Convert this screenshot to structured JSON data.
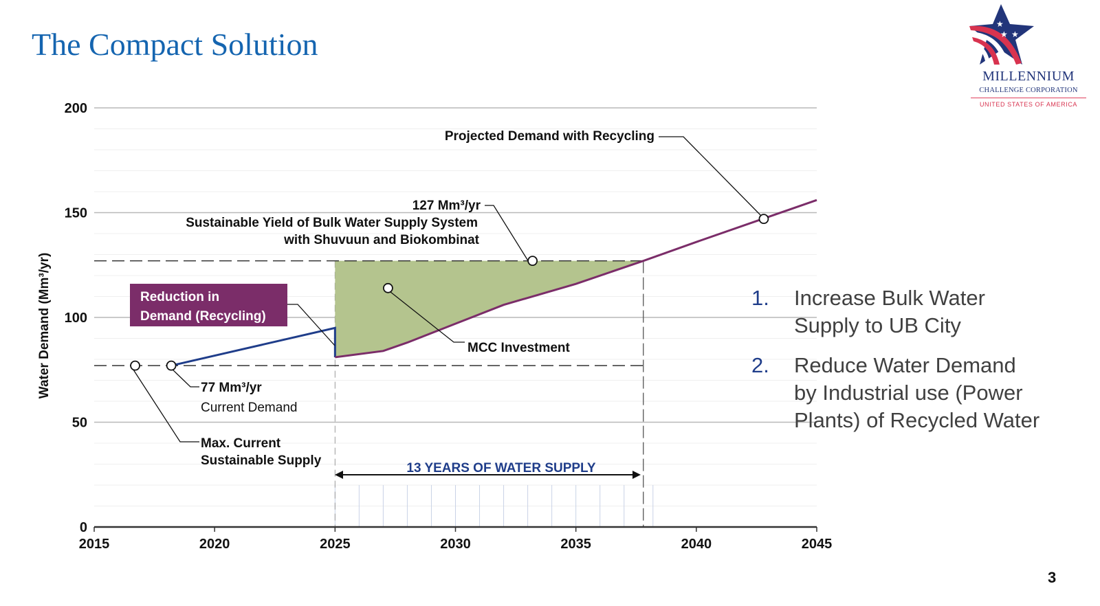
{
  "slide": {
    "title": "The Compact Solution",
    "page_number": "3"
  },
  "logo": {
    "icon": "star-flag-logo",
    "line1": "MILLENNIUM",
    "line2": "CHALLENGE CORPORATION",
    "line3": "UNITED STATES OF AMERICA",
    "colors": {
      "navy": "#22357a",
      "red": "#d8334f"
    }
  },
  "bullets": [
    {
      "num": "1.",
      "text": "Increase Bulk Water Supply to UB City"
    },
    {
      "num": "2.",
      "text": "Reduce Water Demand by Industrial use (Power Plants) of Recycled Water"
    }
  ],
  "chart_data": {
    "type": "line",
    "title": "",
    "xlabel": "",
    "ylabel": "Water Demand (Mm³/yr)",
    "xlim": [
      2015,
      2045
    ],
    "ylim": [
      0,
      200
    ],
    "x_ticks": [
      "2015",
      "2020",
      "2025",
      "2030",
      "2035",
      "2040",
      "2045"
    ],
    "y_ticks": [
      "0",
      "50",
      "100",
      "150",
      "200"
    ],
    "grid": true,
    "series": [
      {
        "name": "Current demand trajectory",
        "color": "#1f3d8a",
        "points": [
          [
            2018.2,
            77
          ],
          [
            2025,
            95
          ],
          [
            2025,
            81
          ]
        ]
      },
      {
        "name": "Projected Demand with Recycling",
        "color": "#7b2d69",
        "points": [
          [
            2025,
            81
          ],
          [
            2027,
            84
          ],
          [
            2028,
            88
          ],
          [
            2030,
            97
          ],
          [
            2032,
            106
          ],
          [
            2035,
            116
          ],
          [
            2037.8,
            127
          ],
          [
            2040,
            136
          ],
          [
            2045,
            156
          ]
        ]
      }
    ],
    "reference_lines": [
      {
        "name": "Max. Current Sustainable Supply",
        "y": 77,
        "style": "dashed",
        "x_end": 2037.8
      },
      {
        "name": "Sustainable Yield of Bulk Water Supply System",
        "y": 127,
        "style": "dashed",
        "x_end": 2037.8
      }
    ],
    "shaded_area": {
      "name": "MCC Investment",
      "color": "#b4c48e",
      "x_range": [
        2025,
        2037.8
      ],
      "upper": 127,
      "lower_series": "Projected Demand with Recycling"
    },
    "span_arrow": {
      "label": "13 YEARS OF WATER SUPPLY",
      "from": 2025,
      "to": 2037.8,
      "color": "#1f3d8a"
    },
    "annotations": {
      "projected": "Projected Demand with Recycling",
      "yield_value": "127 Mm³/yr",
      "yield_line1": "Sustainable Yield of Bulk Water Supply System",
      "yield_line2": "with Shuvuun and Biokombinat",
      "reduction_line1": "Reduction in",
      "reduction_line2": "Demand (Recycling)",
      "mcc": "MCC Investment",
      "current_value": "77 Mm³/yr",
      "current_label": "Current Demand",
      "max_line1": "Max. Current",
      "max_line2": "Sustainable Supply"
    },
    "marker_points": [
      {
        "name": "max-supply-marker",
        "x": 2016.7,
        "y": 77
      },
      {
        "name": "current-demand-marker",
        "x": 2018.2,
        "y": 77
      },
      {
        "name": "yield-marker",
        "x": 2033.2,
        "y": 127
      },
      {
        "name": "mcc-investment-marker",
        "x": 2027.2,
        "y": 114
      },
      {
        "name": "projected-demand-marker",
        "x": 2042.8,
        "y": 147
      }
    ]
  }
}
